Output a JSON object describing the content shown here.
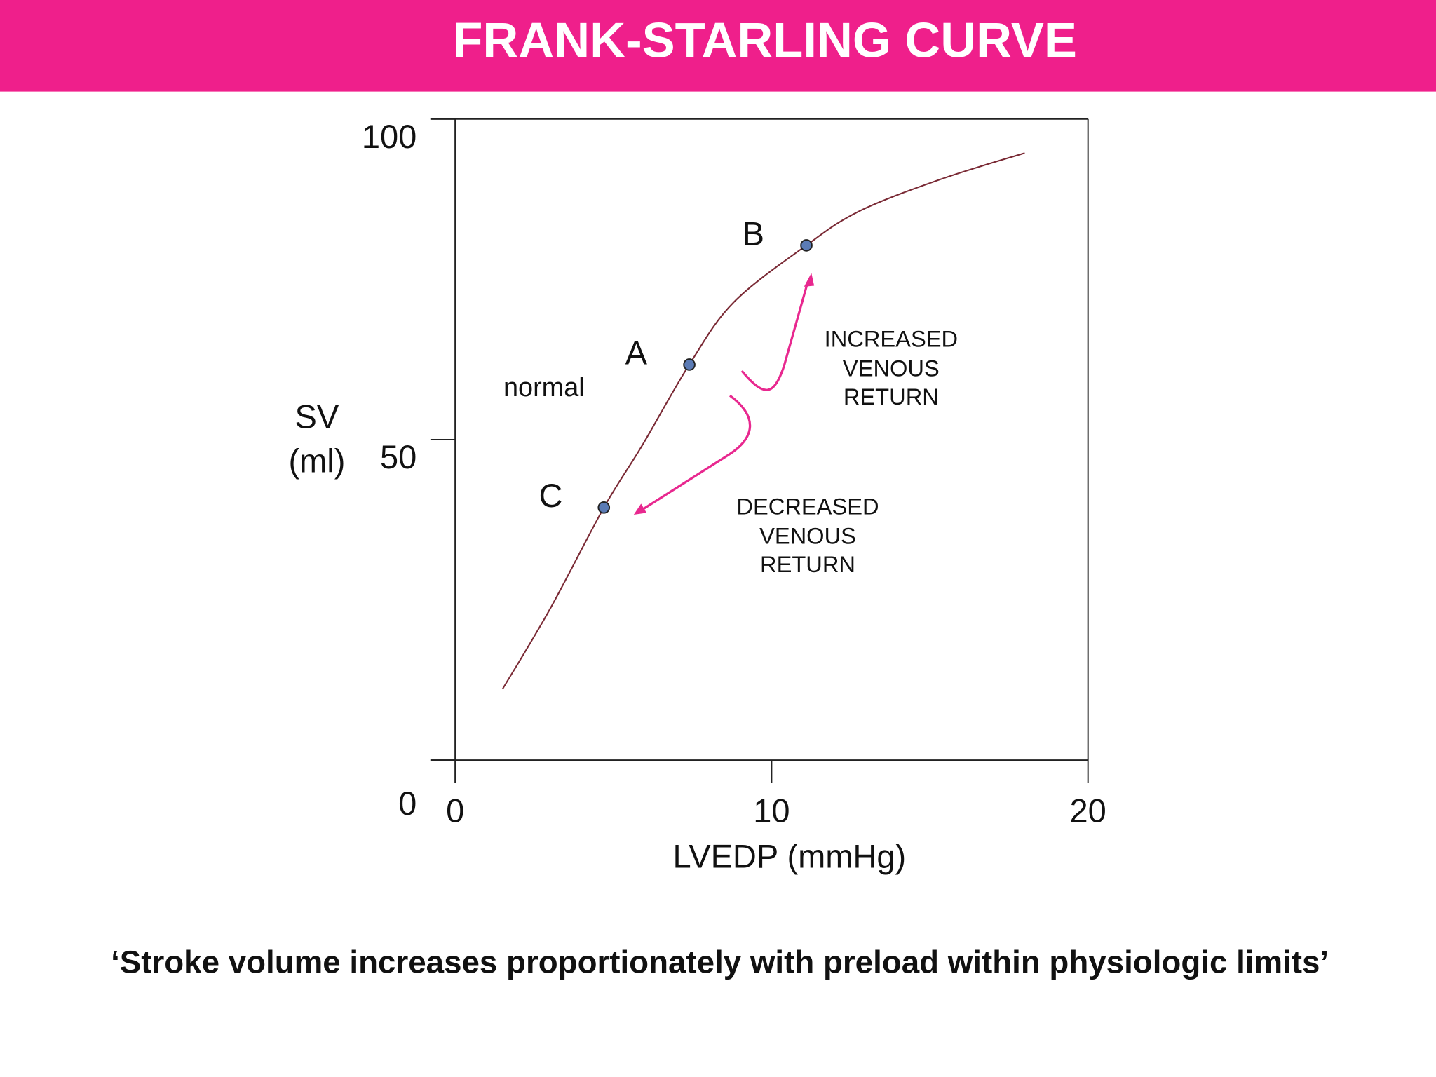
{
  "chart_data": {
    "type": "line",
    "title": "FRANK-STARLING CURVE",
    "caption": "‘Stroke volume increases proportionately with preload within physiologic limits’",
    "x_label": "LVEDP (mmHg)",
    "y_label": [
      "SV",
      "(ml)"
    ],
    "xlim": [
      0,
      20
    ],
    "xticks": [
      0,
      10,
      20
    ],
    "ylim": [
      0,
      100
    ],
    "yticks": [
      0,
      50,
      100
    ],
    "series": [
      {
        "name": "normal",
        "color": "#7a2a35",
        "x": [
          1.5,
          3.0,
          4.7,
          5.9,
          7.4,
          8.8,
          11.1,
          12.8,
          15.4,
          18.0
        ],
        "values": [
          11.1,
          23.6,
          39.4,
          49,
          61.7,
          71.4,
          80.3,
          85.7,
          90.7,
          94.7
        ]
      }
    ],
    "points": [
      {
        "label": "A",
        "x": 7.4,
        "y": 61.7
      },
      {
        "label": "B",
        "x": 11.1,
        "y": 80.3
      },
      {
        "label": "C",
        "x": 4.7,
        "y": 39.4
      }
    ],
    "point_color": "#5b7bb5",
    "annotations": [
      [
        "INCREASED",
        "VENOUS",
        "RETURN"
      ],
      [
        "DECREASED",
        "VENOUS",
        "RETURN"
      ]
    ]
  }
}
